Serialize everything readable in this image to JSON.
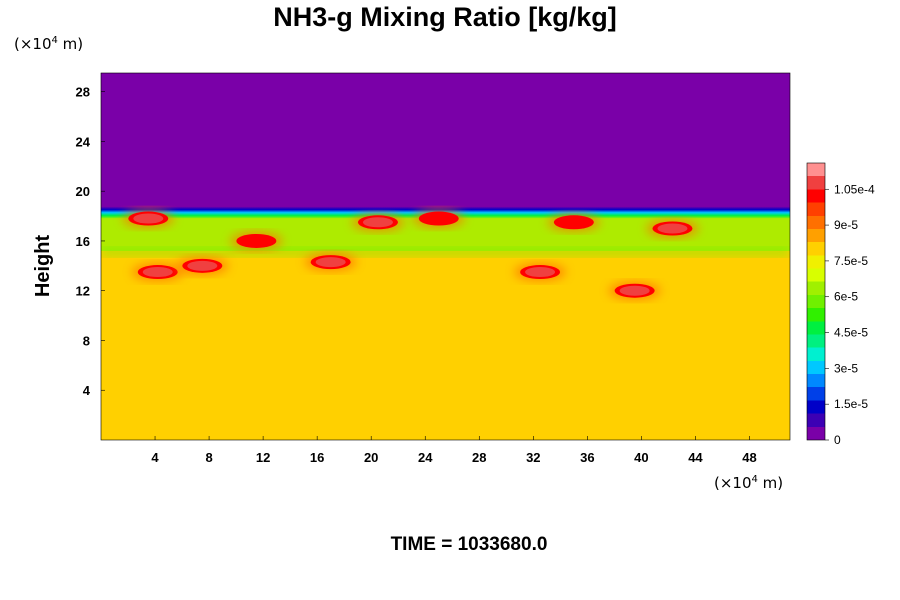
{
  "chart_data": {
    "type": "heatmap",
    "title": "NH3-g Mixing Ratio [kg/kg]",
    "xlabel": "",
    "ylabel": "Height",
    "x_unit": "(×10",
    "x_unit_exp": "4",
    "x_unit_tail": " m)",
    "y_unit": "(×10",
    "y_unit_exp": "4",
    "y_unit_tail": " m)",
    "xlim": [
      0,
      51
    ],
    "ylim": [
      0,
      29.5
    ],
    "x_ticks": [
      4,
      8,
      12,
      16,
      20,
      24,
      28,
      32,
      36,
      40,
      44,
      48
    ],
    "y_ticks": [
      4,
      8,
      12,
      16,
      20,
      24,
      28
    ],
    "colorbar": {
      "min": 0,
      "max": 0.000116,
      "tick_values": [
        0,
        1.5e-05,
        3e-05,
        4.5e-05,
        6e-05,
        7.5e-05,
        9e-05,
        0.000105
      ],
      "tick_labels": [
        "0",
        "1.5e-5",
        "3e-5",
        "4.5e-5",
        "6e-5",
        "7.5e-5",
        "9e-5",
        "1.05e-4"
      ],
      "colors": [
        "#7a00a8",
        "#3c00b4",
        "#0000c8",
        "#0040e8",
        "#0088ff",
        "#00c8ff",
        "#00f0d0",
        "#00f080",
        "#00f040",
        "#30f000",
        "#70f000",
        "#a0f000",
        "#d8ff00",
        "#f0f000",
        "#ffd000",
        "#ffa000",
        "#ff7000",
        "#ff4000",
        "#ff0000",
        "#f04040",
        "#ff9090"
      ]
    },
    "field": {
      "upper_value": 0.0,
      "lower_value": 7.8e-05,
      "interface_height": 18.6,
      "mixed_layer_value": 6.2e-05,
      "mixed_layer_bottom": 15.2,
      "high_concentration_patches": [
        {
          "x": 4.2,
          "y": 13.5,
          "value": 0.000108
        },
        {
          "x": 7.5,
          "y": 14.0,
          "value": 0.000108
        },
        {
          "x": 3.5,
          "y": 17.8,
          "value": 0.000108
        },
        {
          "x": 11.5,
          "y": 16.0,
          "value": 0.0001
        },
        {
          "x": 17.0,
          "y": 14.3,
          "value": 0.000108
        },
        {
          "x": 20.5,
          "y": 17.5,
          "value": 0.000108
        },
        {
          "x": 25.0,
          "y": 17.8,
          "value": 0.0001
        },
        {
          "x": 32.5,
          "y": 13.5,
          "value": 0.000108
        },
        {
          "x": 35.0,
          "y": 17.5,
          "value": 0.0001
        },
        {
          "x": 39.5,
          "y": 12.0,
          "value": 0.000105
        },
        {
          "x": 42.3,
          "y": 17.0,
          "value": 0.000108
        }
      ]
    }
  },
  "time_label": "TIME = 1033680.0"
}
